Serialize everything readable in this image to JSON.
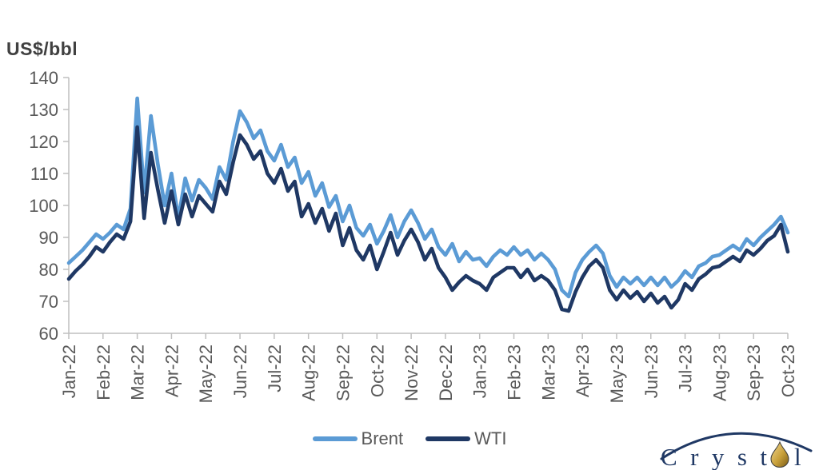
{
  "chart_data": {
    "type": "line",
    "title": "",
    "xlabel": "",
    "ylabel": "US$/bbl",
    "ylim": [
      60,
      140
    ],
    "yticks": [
      60,
      70,
      80,
      90,
      100,
      110,
      120,
      130,
      140
    ],
    "categories": [
      "Jan-22",
      "Feb-22",
      "Mar-22",
      "Apr-22",
      "May-22",
      "Jun-22",
      "Jul-22",
      "Aug-22",
      "Sep-22",
      "Oct-22",
      "Nov-22",
      "Dec-22",
      "Jan-23",
      "Feb-23",
      "Mar-23",
      "Apr-23",
      "May-23",
      "Jun-23",
      "Jul-23",
      "Aug-23",
      "Sep-23",
      "Oct-23"
    ],
    "x_label_rotation": -90,
    "x_spacing_months": 0.2,
    "grid": false,
    "legend_position": "bottom-center",
    "axis_color": "#BFBFBF",
    "tick_label_color": "#595959",
    "series": [
      {
        "name": "Brent",
        "color": "#5B9BD5",
        "values": [
          82,
          84,
          86,
          88.5,
          91,
          89.5,
          91.5,
          94,
          92.5,
          99,
          133.5,
          104,
          128,
          113,
          100,
          110,
          96,
          108.5,
          101.5,
          108,
          105.5,
          102,
          112,
          108,
          120,
          129.5,
          126,
          121,
          123.5,
          117,
          114,
          119,
          112,
          115,
          107,
          110.5,
          103,
          107,
          99.5,
          103,
          95,
          100,
          93,
          90.5,
          94,
          88,
          92,
          97,
          90,
          95,
          98.5,
          94.5,
          89.5,
          92.5,
          87,
          84.5,
          88,
          82.5,
          85.5,
          83,
          83.5,
          81,
          84,
          86,
          84.5,
          87,
          84.5,
          86,
          83,
          85,
          83,
          80,
          73.5,
          71.5,
          79,
          83,
          85.5,
          87.5,
          85,
          78,
          74.5,
          77.5,
          75.5,
          77.5,
          75,
          77.5,
          75,
          77.5,
          74.5,
          76.5,
          79.5,
          77.5,
          81,
          82,
          84,
          84.5,
          86,
          87.5,
          86,
          89.5,
          87.5,
          90,
          92,
          94,
          96.5,
          91.5
        ]
      },
      {
        "name": "WTI",
        "color": "#1F3864",
        "values": [
          77,
          79.5,
          81.5,
          84,
          87,
          85.5,
          88.5,
          91,
          89.5,
          95,
          124.5,
          96,
          116.5,
          105,
          94.5,
          104.5,
          94,
          103.5,
          96.5,
          103,
          100.5,
          98,
          107.5,
          103.5,
          113.5,
          122,
          119,
          114.5,
          117,
          110,
          107,
          111.5,
          104.5,
          107.5,
          96.5,
          100.5,
          94.5,
          99,
          92,
          97.5,
          87.5,
          93,
          86,
          83,
          87.5,
          80,
          85.5,
          91.5,
          84.5,
          89,
          92.5,
          88.5,
          83,
          86.5,
          80.5,
          77.5,
          73.5,
          76,
          78,
          76.5,
          75.5,
          73.5,
          77.5,
          79,
          80.5,
          80.5,
          77.5,
          80,
          76.5,
          78,
          76.5,
          73.5,
          67.5,
          67,
          73,
          77.5,
          81,
          83,
          80.5,
          73.5,
          70.5,
          73.5,
          71,
          73,
          70,
          72.5,
          69.5,
          71.5,
          68,
          70.5,
          75.5,
          73.5,
          77,
          78.5,
          80.5,
          81,
          82.5,
          84,
          82.5,
          86,
          84.5,
          86.5,
          89,
          90.5,
          94,
          85.5
        ]
      }
    ]
  },
  "logo": {
    "text": "Crystol",
    "text_color": "#1F3864",
    "arc_color": "#1F3864",
    "drop_color": "#C9A13B"
  }
}
